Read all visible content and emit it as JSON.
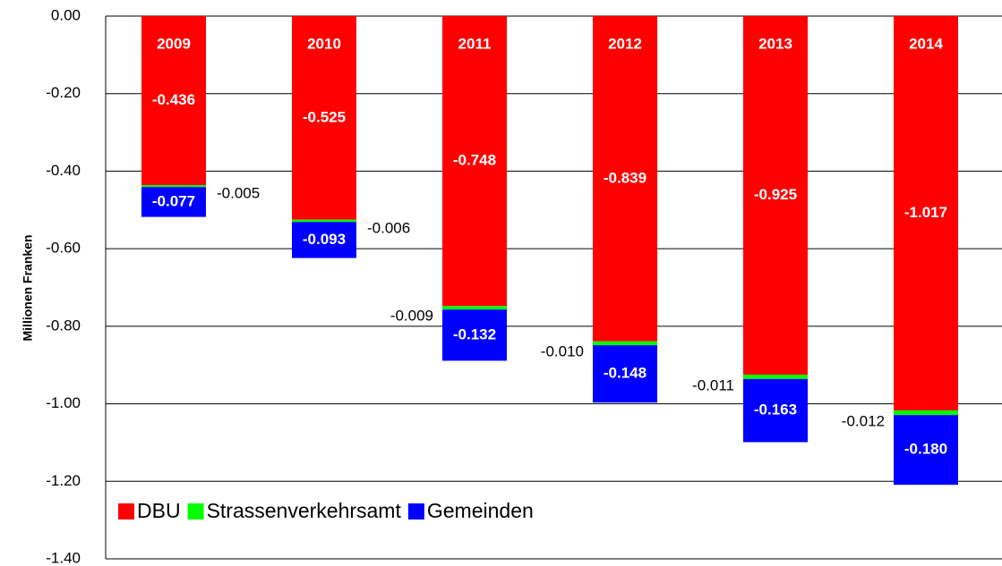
{
  "chart_data": {
    "type": "stacked_bar",
    "y_label": "Millionen Franken",
    "categories": [
      "2009",
      "2010",
      "2011",
      "2012",
      "2013",
      "2014"
    ],
    "series": [
      {
        "name": "DBU",
        "color": "#ff0000",
        "values": [
          -0.436,
          -0.525,
          -0.748,
          -0.839,
          -0.925,
          -1.017
        ]
      },
      {
        "name": "Strassenverkehrsamt",
        "color": "#00ff00",
        "values": [
          -0.005,
          -0.006,
          -0.009,
          -0.01,
          -0.011,
          -0.012
        ],
        "value_labels": [
          "-0.005",
          "-0.006",
          "-0.009",
          "-0.010",
          "-0.011",
          "-0.012"
        ]
      },
      {
        "name": "Gemeinden",
        "color": "#0000ff",
        "values": [
          -0.077,
          -0.093,
          -0.132,
          -0.148,
          -0.163,
          -0.18
        ],
        "value_labels": [
          "-0.077",
          "-0.093",
          "-0.132",
          "-0.148",
          "-0.163",
          "-0.180"
        ]
      }
    ],
    "ylim": [
      -1.4,
      0
    ],
    "yticks": [
      {
        "value": 0,
        "label": "0.00"
      },
      {
        "value": -0.2,
        "label": "-0.20"
      },
      {
        "value": -0.4,
        "label": "-0.40"
      },
      {
        "value": -0.6,
        "label": "-0.60"
      },
      {
        "value": -0.8,
        "label": "-0.80"
      },
      {
        "value": -1.0,
        "label": "-1.00"
      },
      {
        "value": -1.2,
        "label": "-1.20"
      },
      {
        "value": -1.4,
        "label": "-1.40"
      }
    ],
    "grid": true,
    "legend": "lower left"
  }
}
